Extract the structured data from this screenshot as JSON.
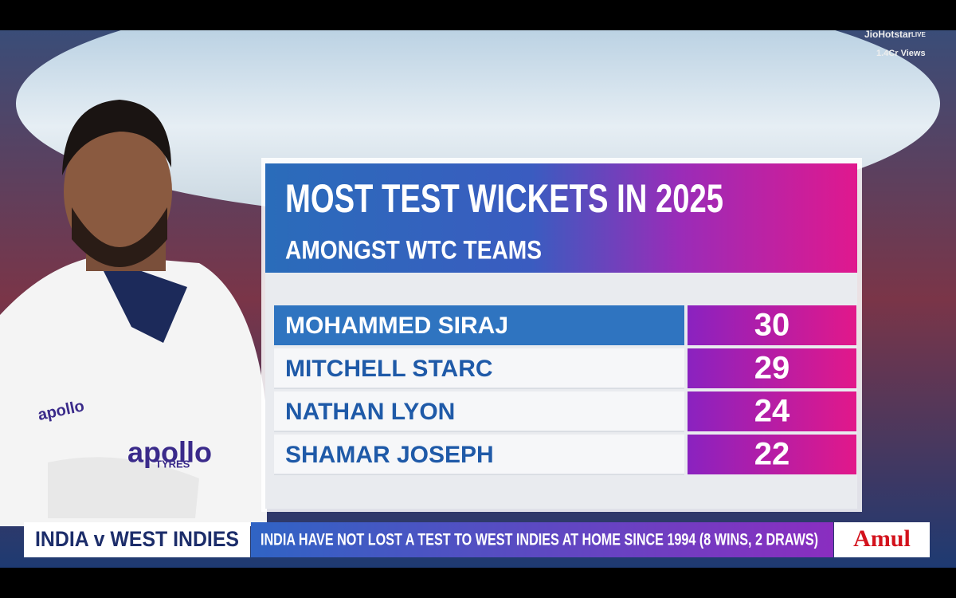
{
  "header": {
    "brand": "JioHotstar",
    "live": "LIVE",
    "views": "1.4Cr Views"
  },
  "photo": {
    "shirt_sponsor": "apollo",
    "shirt_sponsor_sub": "TYRES"
  },
  "graphic": {
    "title": "MOST TEST WICKETS IN 2025",
    "subtitle": "AMONGST WTC TEAMS",
    "rows": [
      [
        "MOHAMMED SIRAJ",
        30
      ],
      [
        "MITCHELL STARC",
        29
      ],
      [
        "NATHAN LYON",
        24
      ],
      [
        "SHAMAR JOSEPH",
        22
      ]
    ]
  },
  "ticker": {
    "match": "INDIA v WEST INDIES",
    "message": "INDIA HAVE NOT LOST A TEST TO WEST INDIES AT HOME SINCE 1994 (8 WINS, 2 DRAWS)",
    "sponsor": "Amul"
  }
}
